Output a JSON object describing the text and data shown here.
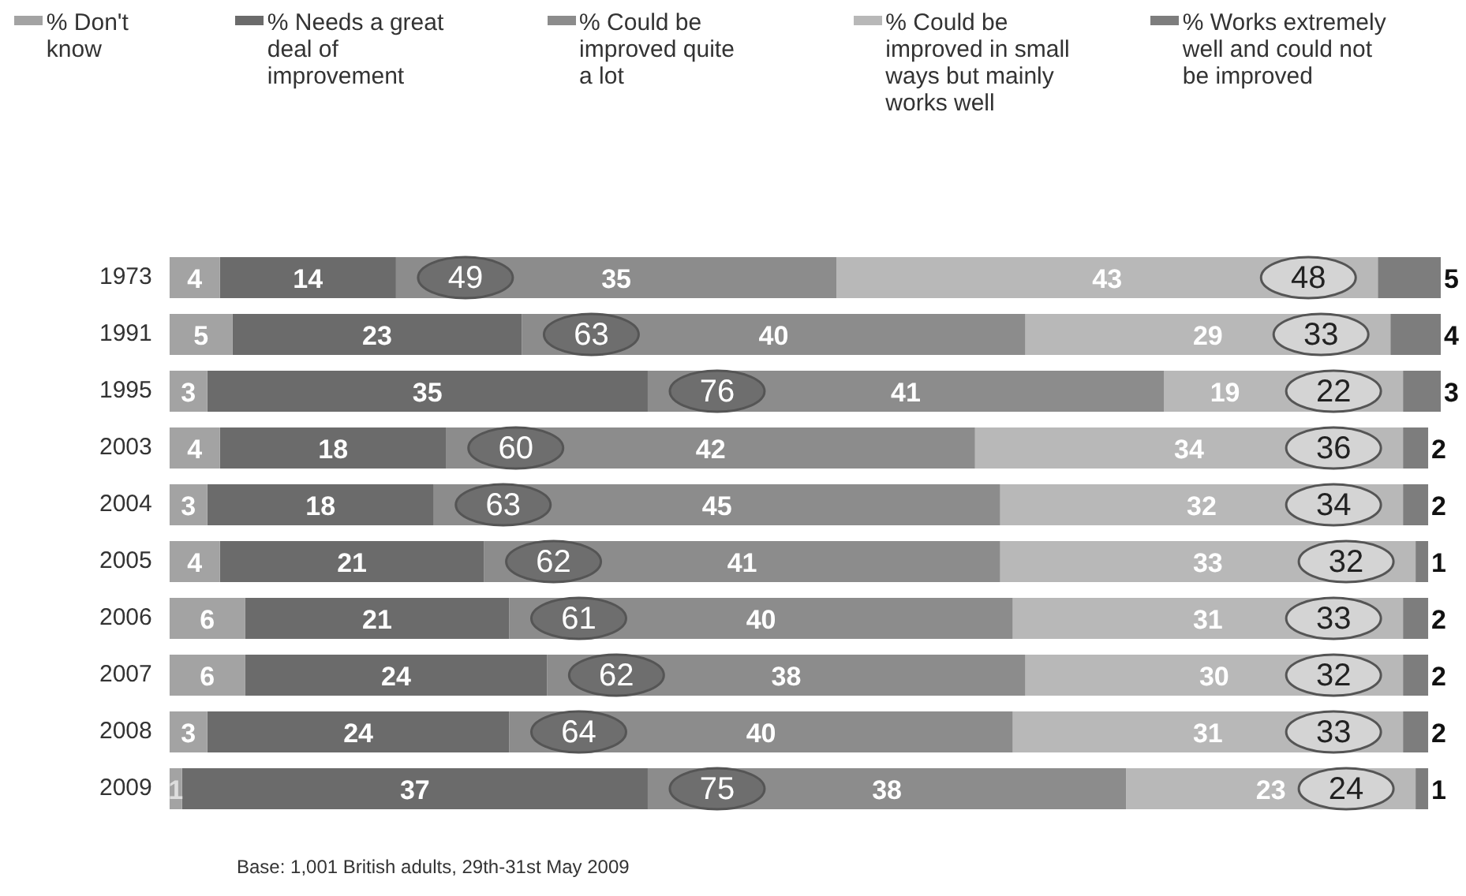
{
  "chart_data": {
    "type": "bar",
    "orientation": "horizontal",
    "stacked": true,
    "data_labels": true,
    "legend": "top",
    "grid": false,
    "tick_labels": "y",
    "categories": [
      "1973",
      "1991",
      "1995",
      "2003",
      "2004",
      "2005",
      "2006",
      "2007",
      "2008",
      "2009"
    ],
    "series": [
      {
        "name": "% Don't know",
        "color": "#a3a3a3",
        "values": [
          4,
          5,
          3,
          4,
          3,
          4,
          6,
          6,
          3,
          1
        ]
      },
      {
        "name": "% Needs a great deal of improvement",
        "color": "#6b6b6b",
        "values": [
          14,
          23,
          35,
          18,
          18,
          21,
          21,
          24,
          24,
          37
        ]
      },
      {
        "name": "% Could be improved quite a lot",
        "color": "#8c8c8c",
        "values": [
          35,
          40,
          41,
          42,
          45,
          41,
          40,
          38,
          40,
          38
        ]
      },
      {
        "name": "% Could be improved in small ways but mainly works well",
        "color": "#b8b8b8",
        "values": [
          43,
          29,
          19,
          34,
          32,
          33,
          31,
          30,
          31,
          23
        ]
      },
      {
        "name": "% Works extremely well and could not be improved",
        "color": "#7d7d7d",
        "values": [
          5,
          4,
          3,
          2,
          2,
          1,
          2,
          2,
          2,
          1
        ]
      }
    ],
    "annotations": [
      "49",
      "48",
      "63",
      "33",
      "76",
      "22",
      "60",
      "36",
      "63",
      "34",
      "62",
      "32",
      "61",
      "33",
      "62",
      "32",
      "64",
      "33",
      "75",
      "24",
      "Base: 1,001 British adults, 29th-31st May 2009"
    ]
  }
}
